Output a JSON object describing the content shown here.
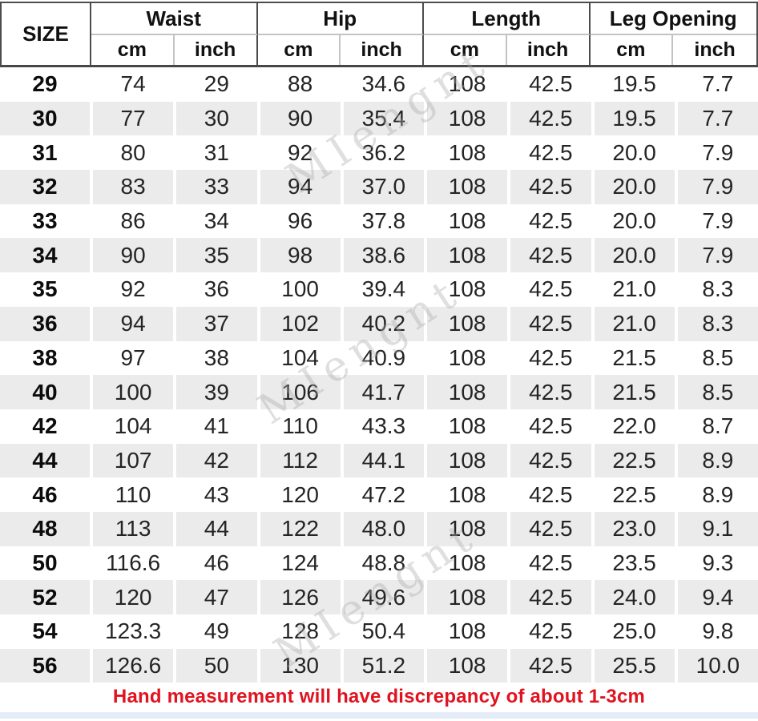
{
  "header": {
    "size": "SIZE",
    "groups": [
      "Waist",
      "Hip",
      "Length",
      "Leg Opening"
    ],
    "units": [
      "cm",
      "inch"
    ]
  },
  "footer": {
    "note": "Hand measurement will have discrepancy of about 1-3cm"
  },
  "watermark": {
    "text": "MIengnt"
  },
  "colors": {
    "footer_red": "#e0131f",
    "alt_row_gray": "#ebebeb",
    "header_border_dark": "#4c4c4c",
    "header_border_light": "#c3c3c3",
    "bottom_strip_blue": "#e4ecf8"
  },
  "chart_data": {
    "type": "table",
    "title": "Pants size chart",
    "column_groups": [
      "Waist",
      "Hip",
      "Length",
      "Leg Opening"
    ],
    "columns": [
      "SIZE",
      "Waist cm",
      "Waist inch",
      "Hip cm",
      "Hip inch",
      "Length cm",
      "Length inch",
      "Leg Opening cm",
      "Leg Opening inch"
    ],
    "rows": [
      [
        "29",
        "74",
        "29",
        "88",
        "34.6",
        "108",
        "42.5",
        "19.5",
        "7.7"
      ],
      [
        "30",
        "77",
        "30",
        "90",
        "35.4",
        "108",
        "42.5",
        "19.5",
        "7.7"
      ],
      [
        "31",
        "80",
        "31",
        "92",
        "36.2",
        "108",
        "42.5",
        "20.0",
        "7.9"
      ],
      [
        "32",
        "83",
        "33",
        "94",
        "37.0",
        "108",
        "42.5",
        "20.0",
        "7.9"
      ],
      [
        "33",
        "86",
        "34",
        "96",
        "37.8",
        "108",
        "42.5",
        "20.0",
        "7.9"
      ],
      [
        "34",
        "90",
        "35",
        "98",
        "38.6",
        "108",
        "42.5",
        "20.0",
        "7.9"
      ],
      [
        "35",
        "92",
        "36",
        "100",
        "39.4",
        "108",
        "42.5",
        "21.0",
        "8.3"
      ],
      [
        "36",
        "94",
        "37",
        "102",
        "40.2",
        "108",
        "42.5",
        "21.0",
        "8.3"
      ],
      [
        "38",
        "97",
        "38",
        "104",
        "40.9",
        "108",
        "42.5",
        "21.5",
        "8.5"
      ],
      [
        "40",
        "100",
        "39",
        "106",
        "41.7",
        "108",
        "42.5",
        "21.5",
        "8.5"
      ],
      [
        "42",
        "104",
        "41",
        "110",
        "43.3",
        "108",
        "42.5",
        "22.0",
        "8.7"
      ],
      [
        "44",
        "107",
        "42",
        "112",
        "44.1",
        "108",
        "42.5",
        "22.5",
        "8.9"
      ],
      [
        "46",
        "110",
        "43",
        "120",
        "47.2",
        "108",
        "42.5",
        "22.5",
        "8.9"
      ],
      [
        "48",
        "113",
        "44",
        "122",
        "48.0",
        "108",
        "42.5",
        "23.0",
        "9.1"
      ],
      [
        "50",
        "116.6",
        "46",
        "124",
        "48.8",
        "108",
        "42.5",
        "23.5",
        "9.3"
      ],
      [
        "52",
        "120",
        "47",
        "126",
        "49.6",
        "108",
        "42.5",
        "24.0",
        "9.4"
      ],
      [
        "54",
        "123.3",
        "49",
        "128",
        "50.4",
        "108",
        "42.5",
        "25.0",
        "9.8"
      ],
      [
        "56",
        "126.6",
        "50",
        "130",
        "51.2",
        "108",
        "42.5",
        "25.5",
        "10.0"
      ]
    ]
  }
}
